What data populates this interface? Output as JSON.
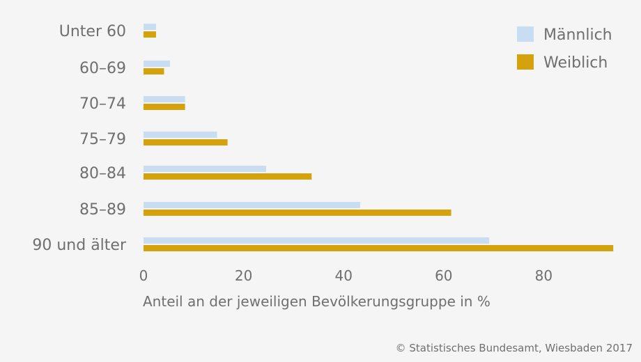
{
  "chart_data": {
    "type": "bar",
    "orientation": "horizontal",
    "categories": [
      "Unter 60",
      "60–69",
      "70–74",
      "75–79",
      "80–84",
      "85–89",
      "90 und älter"
    ],
    "series": [
      {
        "name": "Männlich",
        "values": [
          2.5,
          5.3,
          8.3,
          14.7,
          24.5,
          43.3,
          69.1
        ],
        "color": "#c8dcf2"
      },
      {
        "name": "Weiblich",
        "values": [
          2.5,
          4.1,
          8.3,
          16.8,
          33.6,
          61.5,
          93.9
        ],
        "color": "#d4a20c"
      }
    ],
    "xlabel": "Anteil an der jeweiligen Bevölkerungsgruppe in %",
    "xticks": [
      "0",
      "20",
      "40",
      "60",
      "80"
    ],
    "xlim": [
      0,
      95
    ],
    "grid": false,
    "legend_position": "top-right"
  },
  "source": "© Statistisches Bundesamt, Wiesbaden 2017"
}
